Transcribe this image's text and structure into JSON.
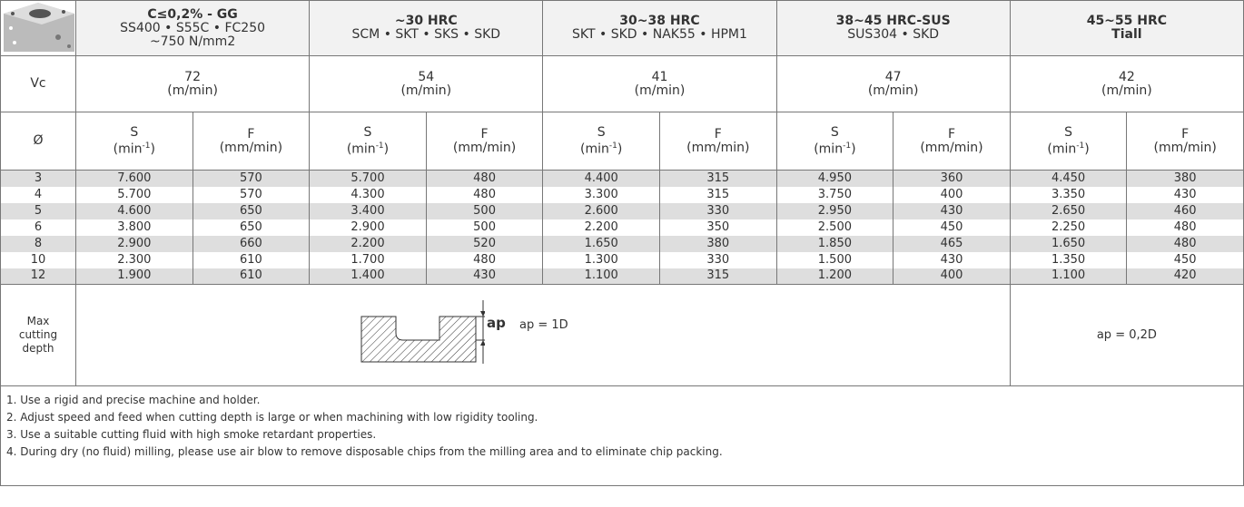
{
  "materials": [
    {
      "title": [
        "C≤0,2% - GG"
      ],
      "subtitle": [
        "SS400 • S55C • FC250",
        "~750 N/mm2"
      ]
    },
    {
      "title": [
        "~30 HRC"
      ],
      "subtitle": [
        "SCM • SKT • SKS • SKD"
      ]
    },
    {
      "title": [
        "30~38 HRC"
      ],
      "subtitle": [
        "SKT • SKD • NAK55 • HPM1"
      ]
    },
    {
      "title": [
        "38~45 HRC-SUS"
      ],
      "subtitle": [
        "SUS304 • SKD"
      ]
    },
    {
      "title": [
        "45~55 HRC",
        "Tiall"
      ],
      "subtitle": []
    }
  ],
  "vc": {
    "label": "Vc",
    "cells": [
      {
        "value": "72",
        "unit": "(m/min)"
      },
      {
        "value": "54",
        "unit": "(m/min)"
      },
      {
        "value": "41",
        "unit": "(m/min)"
      },
      {
        "value": "47",
        "unit": "(m/min)"
      },
      {
        "value": "42",
        "unit": "(m/min)"
      }
    ]
  },
  "subheader": {
    "label": "Ø",
    "groups": [
      {
        "s": "S",
        "s_unit": "(min",
        "s_sup": "-1",
        "s_close": ")",
        "f": "F",
        "f_unit": "(mm/min)"
      },
      {
        "s": "S",
        "s_unit": "(min",
        "s_sup": "-1",
        "s_close": ")",
        "f": "F",
        "f_unit": "(mm/min)"
      },
      {
        "s": "S",
        "s_unit": "(min",
        "s_sup": "-1",
        "s_close": ")",
        "f": "F",
        "f_unit": "(mm/min)"
      },
      {
        "s": "S",
        "s_unit": "(min",
        "s_sup": "-1",
        "s_close": ")",
        "f": "F",
        "f_unit": "(mm/min)"
      },
      {
        "s": "S",
        "s_unit": "(min",
        "s_sup": "-1",
        "s_close": ")",
        "f": "F",
        "f_unit": "(mm/min)"
      }
    ]
  },
  "rows": [
    [
      "3",
      "7.600",
      "570",
      "5.700",
      "480",
      "4.400",
      "315",
      "4.950",
      "360",
      "4.450",
      "380"
    ],
    [
      "4",
      "5.700",
      "570",
      "4.300",
      "480",
      "3.300",
      "315",
      "3.750",
      "400",
      "3.350",
      "430"
    ],
    [
      "5",
      "4.600",
      "650",
      "3.400",
      "500",
      "2.600",
      "330",
      "2.950",
      "430",
      "2.650",
      "460"
    ],
    [
      "6",
      "3.800",
      "650",
      "2.900",
      "500",
      "2.200",
      "350",
      "2.500",
      "450",
      "2.250",
      "480"
    ],
    [
      "8",
      "2.900",
      "660",
      "2.200",
      "520",
      "1.650",
      "380",
      "1.850",
      "465",
      "1.650",
      "480"
    ],
    [
      "10",
      "2.300",
      "610",
      "1.700",
      "480",
      "1.300",
      "330",
      "1.500",
      "430",
      "1.350",
      "450"
    ],
    [
      "12",
      "1.900",
      "610",
      "1.400",
      "430",
      "1.100",
      "315",
      "1.200",
      "400",
      "1.100",
      "420"
    ]
  ],
  "depth": {
    "label": [
      "Max",
      "cutting",
      "depth"
    ],
    "ap": "ap",
    "ap_1": "ap = 1D",
    "ap_2": "ap = 0,2D"
  },
  "notes": [
    "1. Use a rigid and precise machine and holder.",
    "2. Adjust speed and feed when cutting depth is large or when machining with low rigidity tooling.",
    "3. Use a suitable cutting fluid with high smoke retardant properties.",
    "4. During dry (no fluid) milling, please use air blow to remove disposable chips from the milling area and to eliminate chip packing."
  ]
}
